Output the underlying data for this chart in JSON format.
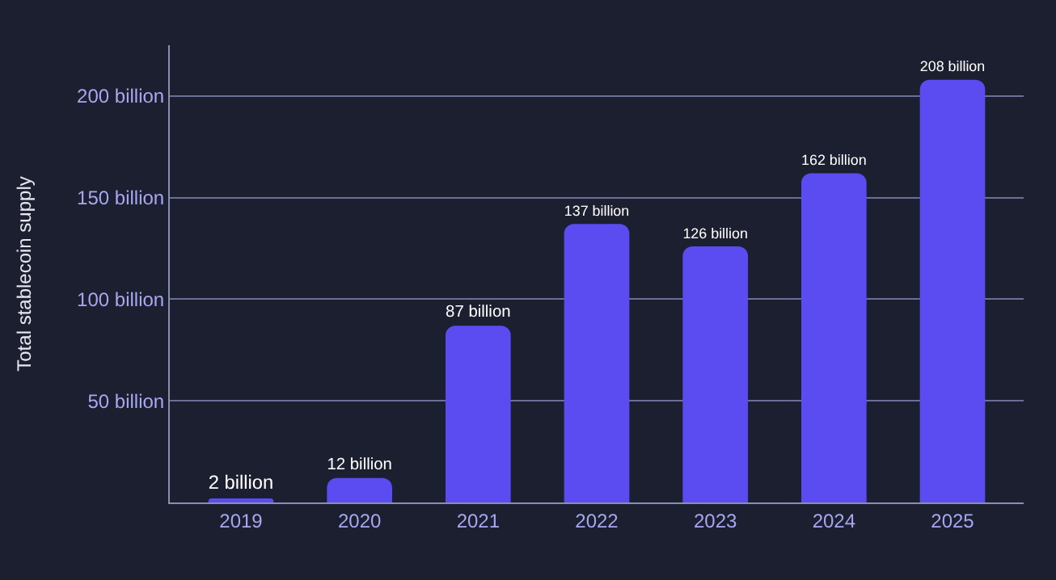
{
  "chart_data": {
    "type": "bar",
    "ylabel": "Total stablecoin supply",
    "categories": [
      "2019",
      "2020",
      "2021",
      "2022",
      "2023",
      "2024",
      "2025"
    ],
    "values": [
      2,
      12,
      87,
      137,
      126,
      162,
      208
    ],
    "value_labels": [
      "2 billion",
      "12 billion",
      "87 billion",
      "137 billion",
      "126 billion",
      "162 billion",
      "208 billion"
    ],
    "color": "#5b4cf2",
    "ylim": [
      0,
      225
    ],
    "yticks": [
      {
        "value": 50,
        "label": "50 billion"
      },
      {
        "value": 100,
        "label": "100 billion"
      },
      {
        "value": 150,
        "label": "150 billion"
      },
      {
        "value": 200,
        "label": "200 billion"
      }
    ],
    "grid": "y",
    "legend": false
  }
}
